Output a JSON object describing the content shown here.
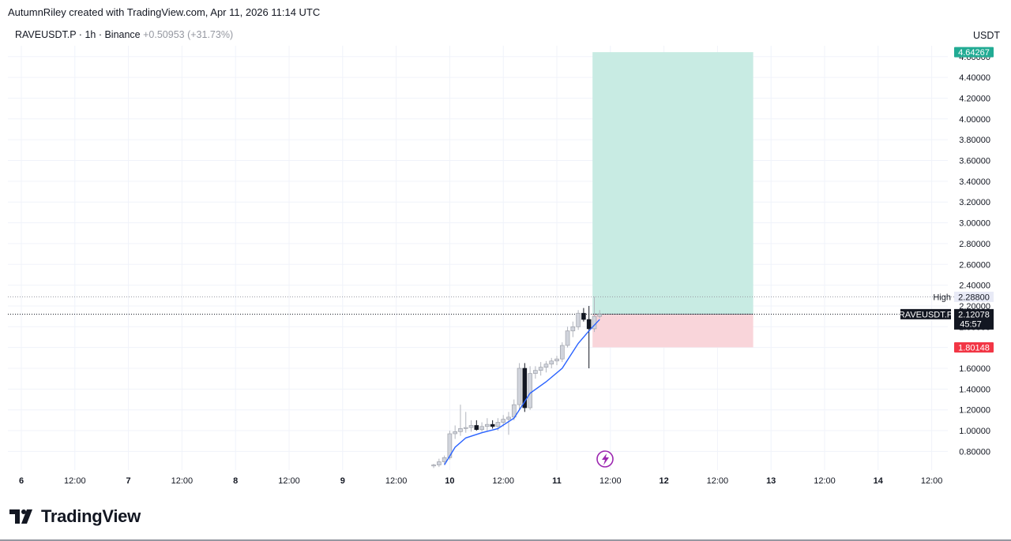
{
  "header": {
    "created_by": "AutumnRiley created with TradingView.com, Apr 11, 2026 11:14 UTC"
  },
  "symbol_line": {
    "symbol": "RAVEUSDT.P · 1h · Binance",
    "change": "+0.50953 (+31.73%)"
  },
  "currency": "USDT",
  "brand": "TradingView",
  "colors": {
    "up_candle": "#d1d4dc",
    "down_candle": "#131722",
    "ma_line": "#2962ff",
    "target_zone": "#c8ebe3",
    "stop_zone": "#f9d5da",
    "target_badge": "#22ab94",
    "stop_badge": "#f23645",
    "accent_purple": "#9c27b0"
  },
  "chart_data": {
    "type": "candlestick",
    "y_ticks": [
      "0.80000",
      "1.00000",
      "1.20000",
      "1.40000",
      "1.60000",
      "1.80000",
      "2.00000",
      "2.20000",
      "2.40000",
      "2.60000",
      "2.80000",
      "3.00000",
      "3.20000",
      "3.40000",
      "3.60000",
      "3.80000",
      "4.00000",
      "4.20000",
      "4.40000",
      "4.60000"
    ],
    "x_ticks": [
      "6",
      "12:00",
      "7",
      "12:00",
      "8",
      "12:00",
      "9",
      "12:00",
      "10",
      "12:00",
      "11",
      "12:00",
      "12",
      "12:00",
      "13",
      "12:00",
      "14",
      "12:00"
    ],
    "ylim": [
      0.65,
      4.75
    ],
    "grid": true,
    "labels": {
      "high_label": "High",
      "high_value": "2.28800",
      "current_symbol": "RAVEUSDT.P",
      "current_price": "2.12078",
      "countdown": "45:57",
      "target_price": "4.64267",
      "stop_price": "1.80148"
    },
    "position": {
      "entry": 2.12078,
      "target": 4.64267,
      "stop": 1.80148,
      "start_time": 11.3333,
      "end_time": 12.8333
    },
    "candles": [
      {
        "t": 9.85,
        "o": 0.66,
        "h": 0.68,
        "l": 0.64,
        "c": 0.67
      },
      {
        "t": 9.9,
        "o": 0.67,
        "h": 0.73,
        "l": 0.65,
        "c": 0.7
      },
      {
        "t": 9.95,
        "o": 0.7,
        "h": 0.76,
        "l": 0.68,
        "c": 0.74
      },
      {
        "t": 10.0,
        "o": 0.74,
        "h": 1.0,
        "l": 0.72,
        "c": 0.97
      },
      {
        "t": 10.05,
        "o": 0.97,
        "h": 1.05,
        "l": 0.92,
        "c": 0.99
      },
      {
        "t": 10.1,
        "o": 0.99,
        "h": 1.25,
        "l": 0.95,
        "c": 1.02
      },
      {
        "t": 10.15,
        "o": 1.02,
        "h": 1.18,
        "l": 0.98,
        "c": 1.03
      },
      {
        "t": 10.2,
        "o": 1.03,
        "h": 1.1,
        "l": 0.99,
        "c": 1.05
      },
      {
        "t": 10.25,
        "o": 1.05,
        "h": 1.1,
        "l": 1.0,
        "c": 1.01
      },
      {
        "t": 10.3,
        "o": 1.01,
        "h": 1.08,
        "l": 0.99,
        "c": 1.04
      },
      {
        "t": 10.35,
        "o": 1.04,
        "h": 1.12,
        "l": 1.0,
        "c": 1.06
      },
      {
        "t": 10.4,
        "o": 1.06,
        "h": 1.1,
        "l": 1.02,
        "c": 1.04
      },
      {
        "t": 10.45,
        "o": 1.04,
        "h": 1.12,
        "l": 1.0,
        "c": 1.08
      },
      {
        "t": 10.5,
        "o": 1.08,
        "h": 1.15,
        "l": 1.04,
        "c": 1.11
      },
      {
        "t": 10.55,
        "o": 1.11,
        "h": 1.18,
        "l": 0.96,
        "c": 1.13
      },
      {
        "t": 10.6,
        "o": 1.13,
        "h": 1.3,
        "l": 1.1,
        "c": 1.25
      },
      {
        "t": 10.65,
        "o": 1.25,
        "h": 1.65,
        "l": 1.2,
        "c": 1.6
      },
      {
        "t": 10.7,
        "o": 1.6,
        "h": 1.65,
        "l": 1.18,
        "c": 1.22
      },
      {
        "t": 10.75,
        "o": 1.22,
        "h": 1.62,
        "l": 1.2,
        "c": 1.55
      },
      {
        "t": 10.8,
        "o": 1.55,
        "h": 1.62,
        "l": 1.5,
        "c": 1.58
      },
      {
        "t": 10.85,
        "o": 1.58,
        "h": 1.66,
        "l": 1.53,
        "c": 1.61
      },
      {
        "t": 10.9,
        "o": 1.61,
        "h": 1.67,
        "l": 1.56,
        "c": 1.64
      },
      {
        "t": 10.95,
        "o": 1.64,
        "h": 1.7,
        "l": 1.6,
        "c": 1.67
      },
      {
        "t": 11.0,
        "o": 1.67,
        "h": 1.72,
        "l": 1.63,
        "c": 1.69
      },
      {
        "t": 11.05,
        "o": 1.69,
        "h": 1.85,
        "l": 1.66,
        "c": 1.82
      },
      {
        "t": 11.1,
        "o": 1.82,
        "h": 2.0,
        "l": 1.8,
        "c": 1.96
      },
      {
        "t": 11.15,
        "o": 1.96,
        "h": 2.05,
        "l": 1.9,
        "c": 2.0
      },
      {
        "t": 11.2,
        "o": 2.0,
        "h": 2.16,
        "l": 1.97,
        "c": 2.13
      },
      {
        "t": 11.25,
        "o": 2.13,
        "h": 2.18,
        "l": 2.05,
        "c": 2.07
      },
      {
        "t": 11.3,
        "o": 2.07,
        "h": 2.2,
        "l": 1.6,
        "c": 1.98
      },
      {
        "t": 11.35,
        "o": 1.98,
        "h": 2.29,
        "l": 1.95,
        "c": 2.1
      },
      {
        "t": 11.4,
        "o": 2.1,
        "h": 2.16,
        "l": 2.08,
        "c": 2.12
      }
    ],
    "ma": [
      {
        "t": 9.95,
        "v": 0.67
      },
      {
        "t": 10.05,
        "v": 0.84
      },
      {
        "t": 10.15,
        "v": 0.93
      },
      {
        "t": 10.3,
        "v": 0.98
      },
      {
        "t": 10.45,
        "v": 1.02
      },
      {
        "t": 10.6,
        "v": 1.12
      },
      {
        "t": 10.75,
        "v": 1.36
      },
      {
        "t": 10.9,
        "v": 1.47
      },
      {
        "t": 11.05,
        "v": 1.6
      },
      {
        "t": 11.2,
        "v": 1.84
      },
      {
        "t": 11.3,
        "v": 1.96
      },
      {
        "t": 11.4,
        "v": 2.07
      }
    ]
  }
}
